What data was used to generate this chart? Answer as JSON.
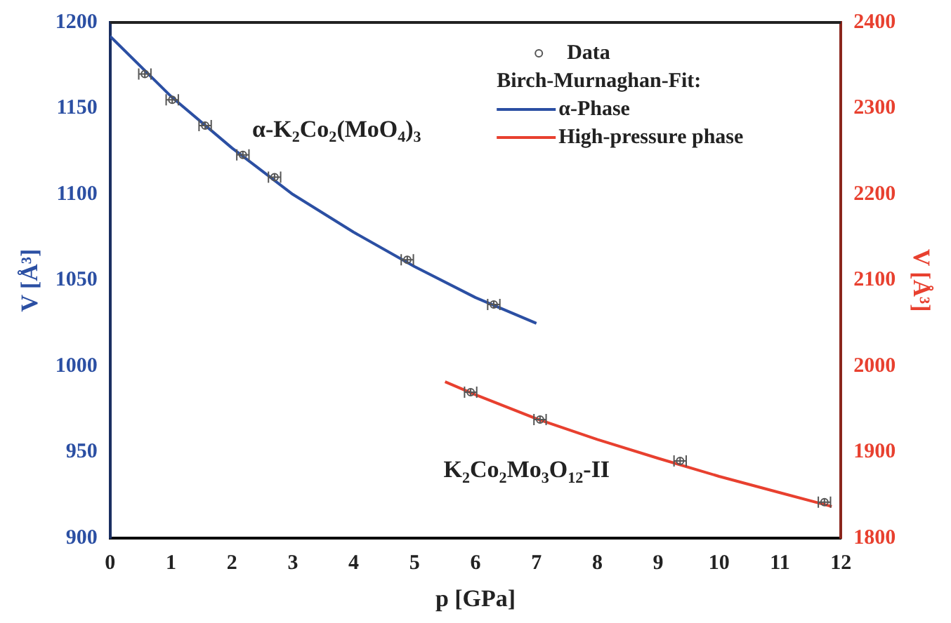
{
  "chart_data": {
    "type": "scatter",
    "xlabel": "p [GPa]",
    "ylabel": "V [Å³]",
    "y2label": "V [Å³]",
    "legend_title": "Birch-Murnaghan-Fit:",
    "legend": "top right",
    "grid": false,
    "xlim": [
      0,
      12
    ],
    "xticks": [
      0,
      1,
      2,
      3,
      4,
      5,
      6,
      7,
      8,
      9,
      10,
      11,
      12
    ],
    "ylim": [
      900,
      1200
    ],
    "yticks": [
      900,
      950,
      1000,
      1050,
      1100,
      1150,
      1200
    ],
    "y2lim": [
      1800,
      2400
    ],
    "y2ticks": [
      1800,
      1900,
      2000,
      2100,
      2200,
      2300,
      2400
    ],
    "series": [
      {
        "name": "Data",
        "color": "#555555",
        "marker": "circle",
        "x": [
          0.57,
          1.02,
          1.56,
          2.18,
          2.7,
          4.88,
          6.3
        ],
        "values": [
          1170,
          1155,
          1140,
          1123,
          1110,
          1062,
          1036
        ],
        "errors": [
          2,
          2,
          2,
          2,
          2,
          2,
          2
        ],
        "xerrors": [
          0.1,
          0.1,
          0.1,
          0.1,
          0.1,
          0.1,
          0.1
        ]
      },
      {
        "color": "#555555",
        "marker": "circle",
        "axis": "y2",
        "x": [
          5.92,
          7.06,
          9.36,
          11.73
        ],
        "values": [
          1970,
          1938,
          1890,
          1842
        ],
        "errors": [
          4,
          4,
          4,
          4
        ],
        "xerrors": [
          0.1,
          0.1,
          0.1,
          0.1
        ]
      },
      {
        "type": "line",
        "name": "α-Phase",
        "color": "#2b4fa3",
        "marker": "none",
        "x": [
          0,
          1,
          2,
          3,
          4,
          5,
          6,
          7
        ],
        "values": [
          1192,
          1157,
          1127,
          1100,
          1078,
          1058,
          1040,
          1025
        ]
      },
      {
        "type": "line",
        "name": "High-pressure phase",
        "color": "#e8402f",
        "marker": "none",
        "axis": "y2",
        "x": [
          5.5,
          6,
          7,
          8,
          9,
          10,
          11,
          11.85
        ],
        "values": [
          1982,
          1967,
          1939,
          1915,
          1893,
          1872,
          1853,
          1837
        ]
      }
    ],
    "annotations": [
      "α-K$_{2}$Co$_{2}$(MoO$_{4}$)$_{3}$",
      "K$_{2}$Co$_{2}$Mo$_{3}$O$_{12}$-II"
    ]
  }
}
